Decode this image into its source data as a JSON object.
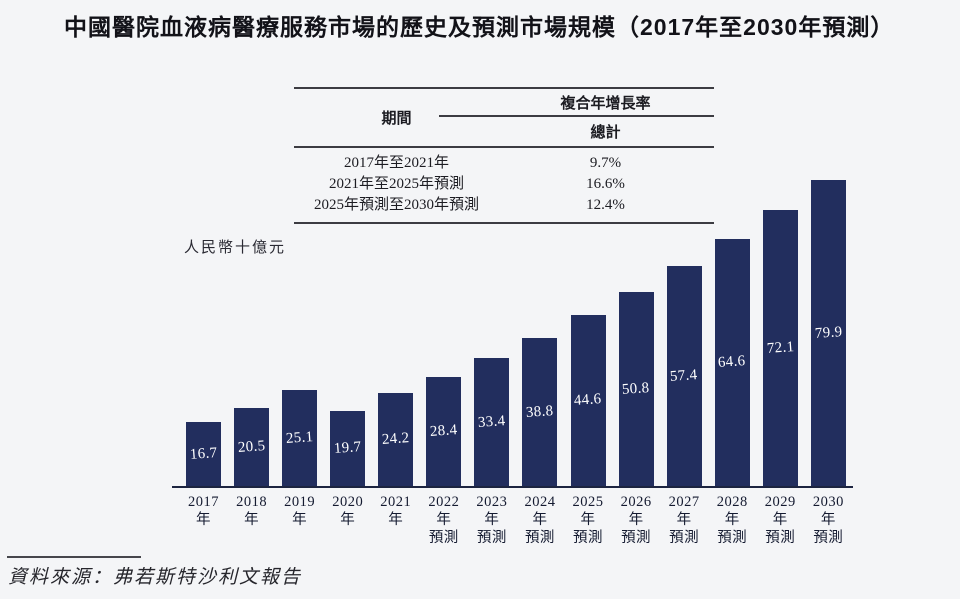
{
  "title": "中國醫院血液病醫療服務市場的歷史及預測市場規模（2017年至2030年預測）",
  "cagr_table": {
    "col_period": "期間",
    "col_cagr": "複合年增長率",
    "col_total": "總計",
    "rows": [
      {
        "period": "2017年至2021年",
        "total": "9.7%"
      },
      {
        "period": "2021年至2025年預測",
        "total": "16.6%"
      },
      {
        "period": "2025年預測至2030年預測",
        "total": "12.4%"
      }
    ]
  },
  "chart_data": {
    "type": "bar",
    "title": "中國醫院血液病醫療服務市場的歷史及預測市場規模（2017年至2030年預測）",
    "ylabel": "人民幣十億元",
    "xlabel": "",
    "ylim": [
      0,
      80
    ],
    "grid": false,
    "legend": "none",
    "categories": [
      "2017年",
      "2018年",
      "2019年",
      "2020年",
      "2021年",
      "2022年\n預測",
      "2023年\n預測",
      "2024年\n預測",
      "2025年\n預測",
      "2026年\n預測",
      "2027年\n預測",
      "2028年\n預測",
      "2029年\n預測",
      "2030年\n預測"
    ],
    "values": [
      16.7,
      20.5,
      25.1,
      19.7,
      24.2,
      28.4,
      33.4,
      38.8,
      44.6,
      50.8,
      57.4,
      64.6,
      72.1,
      79.9
    ],
    "bar_color": "#222e5e",
    "value_label_color": "#ffffff"
  },
  "source": "資料來源：弗若斯特沙利文報告"
}
